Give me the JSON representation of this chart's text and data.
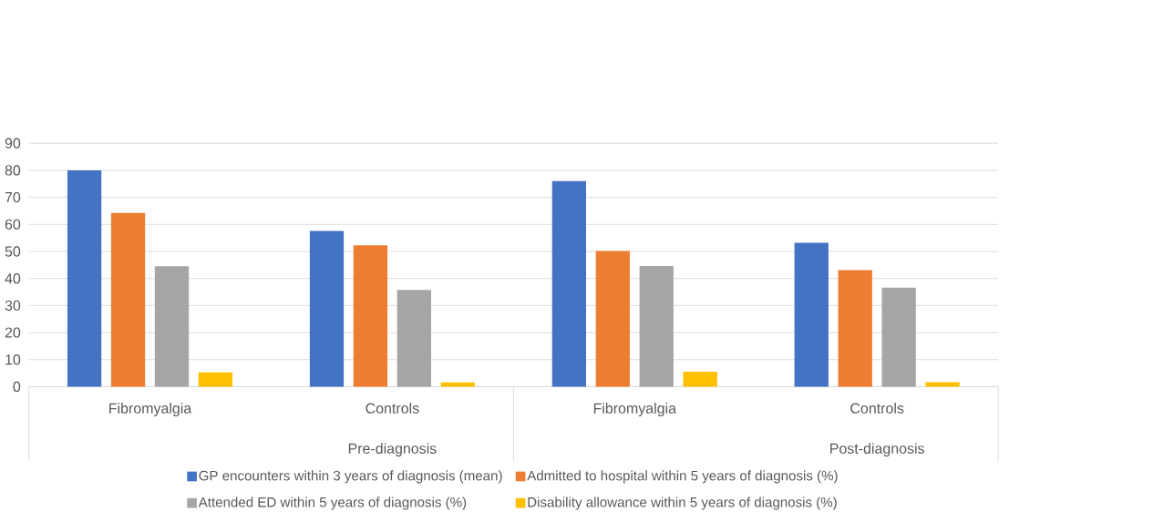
{
  "chart_data": {
    "type": "bar",
    "categories": [
      "Fibromyalgia",
      "Controls",
      "Fibromyalgia",
      "Controls"
    ],
    "annotations": [
      "Pre-diagnosis",
      "Post-diagnosis"
    ],
    "series": [
      {
        "name": "GP encounters within 3 years of diagnosis (mean)",
        "color": "#4472c4",
        "values": [
          80,
          57.6,
          76,
          53.2
        ]
      },
      {
        "name": "Admitted to hospital within 5 years of diagnosis (%)",
        "color": "#ed7d31",
        "values": [
          64.2,
          52.3,
          50.2,
          43.1
        ]
      },
      {
        "name": "Attended ED within 5 years of diagnosis (%)",
        "color": "#a5a5a5",
        "values": [
          44.5,
          35.8,
          44.6,
          36.6
        ]
      },
      {
        "name": "Disability allowance within 5 years of diagnosis (%)",
        "color": "#ffc000",
        "values": [
          5.3,
          1.6,
          5.5,
          1.7
        ]
      }
    ],
    "ylim": [
      0,
      90
    ],
    "yticks": [
      0,
      10,
      20,
      30,
      40,
      50,
      60,
      70,
      80,
      90
    ],
    "grid": "y",
    "legend": "bottom"
  }
}
